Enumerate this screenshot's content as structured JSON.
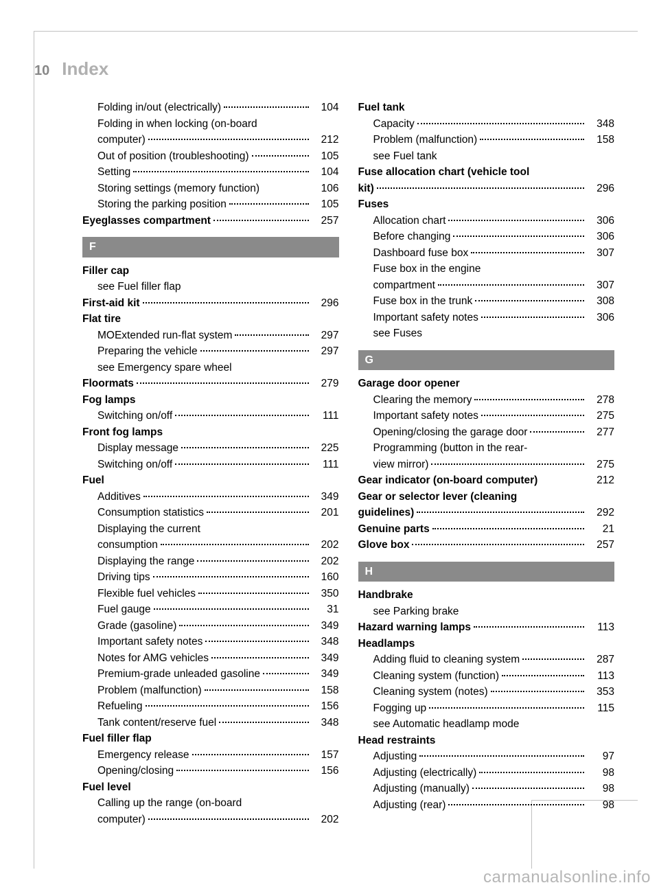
{
  "page_number": "10",
  "title": "Index",
  "watermark": "carmanualsonline.info",
  "colors": {
    "bar_bg": "#8a8a8a",
    "bar_fg": "#ffffff",
    "muted": "#b0b0b0",
    "text": "#000000",
    "frame": "#c0c0c0"
  },
  "left": [
    {
      "type": "row",
      "indent": 1,
      "bold": false,
      "label": "Folding in/out (electrically)",
      "page": "104",
      "dots": true
    },
    {
      "type": "row",
      "indent": 1,
      "bold": false,
      "label": "Folding in when locking (on-board",
      "cont": true
    },
    {
      "type": "row",
      "indent": 1,
      "bold": false,
      "label": "computer)",
      "page": "212",
      "dots": true
    },
    {
      "type": "row",
      "indent": 1,
      "bold": false,
      "label": "Out of position (troubleshooting)",
      "page": "105",
      "dots": true,
      "shortdots": true
    },
    {
      "type": "row",
      "indent": 1,
      "bold": false,
      "label": "Setting",
      "page": "104",
      "dots": true
    },
    {
      "type": "row",
      "indent": 1,
      "bold": false,
      "label": "Storing settings (memory function)",
      "page": "106",
      "dots": false
    },
    {
      "type": "row",
      "indent": 1,
      "bold": false,
      "label": "Storing the parking position",
      "page": "105",
      "dots": true
    },
    {
      "type": "row",
      "indent": 0,
      "bold": true,
      "label": "Eyeglasses compartment",
      "page": "257",
      "dots": true
    },
    {
      "type": "letter",
      "label": "F"
    },
    {
      "type": "row",
      "indent": 0,
      "bold": true,
      "label": "Filler cap"
    },
    {
      "type": "row",
      "indent": 1,
      "bold": false,
      "label": "see Fuel filler flap"
    },
    {
      "type": "row",
      "indent": 0,
      "bold": true,
      "label": "First-aid kit",
      "page": "296",
      "dots": true
    },
    {
      "type": "row",
      "indent": 0,
      "bold": true,
      "label": "Flat tire"
    },
    {
      "type": "row",
      "indent": 1,
      "bold": false,
      "label": "MOExtended run-flat system",
      "page": "297",
      "dots": true
    },
    {
      "type": "row",
      "indent": 1,
      "bold": false,
      "label": "Preparing the vehicle",
      "page": "297",
      "dots": true
    },
    {
      "type": "row",
      "indent": 1,
      "bold": false,
      "label": "see Emergency spare wheel"
    },
    {
      "type": "row",
      "indent": 0,
      "bold": true,
      "label": "Floormats",
      "page": "279",
      "dots": true
    },
    {
      "type": "row",
      "indent": 0,
      "bold": true,
      "label": "Fog lamps"
    },
    {
      "type": "row",
      "indent": 1,
      "bold": false,
      "label": "Switching on/off",
      "page": "111",
      "dots": true
    },
    {
      "type": "row",
      "indent": 0,
      "bold": true,
      "label": "Front fog lamps"
    },
    {
      "type": "row",
      "indent": 1,
      "bold": false,
      "label": "Display message",
      "page": "225",
      "dots": true
    },
    {
      "type": "row",
      "indent": 1,
      "bold": false,
      "label": "Switching on/off",
      "page": "111",
      "dots": true
    },
    {
      "type": "row",
      "indent": 0,
      "bold": true,
      "label": "Fuel"
    },
    {
      "type": "row",
      "indent": 1,
      "bold": false,
      "label": "Additives",
      "page": "349",
      "dots": true
    },
    {
      "type": "row",
      "indent": 1,
      "bold": false,
      "label": "Consumption statistics",
      "page": "201",
      "dots": true
    },
    {
      "type": "row",
      "indent": 1,
      "bold": false,
      "label": "Displaying the current",
      "cont": true
    },
    {
      "type": "row",
      "indent": 1,
      "bold": false,
      "label": "consumption",
      "page": "202",
      "dots": true
    },
    {
      "type": "row",
      "indent": 1,
      "bold": false,
      "label": "Displaying the range",
      "page": "202",
      "dots": true
    },
    {
      "type": "row",
      "indent": 1,
      "bold": false,
      "label": "Driving tips",
      "page": "160",
      "dots": true
    },
    {
      "type": "row",
      "indent": 1,
      "bold": false,
      "label": "Flexible fuel vehicles",
      "page": "350",
      "dots": true
    },
    {
      "type": "row",
      "indent": 1,
      "bold": false,
      "label": "Fuel gauge",
      "page": "31",
      "dots": true
    },
    {
      "type": "row",
      "indent": 1,
      "bold": false,
      "label": "Grade (gasoline)",
      "page": "349",
      "dots": true
    },
    {
      "type": "row",
      "indent": 1,
      "bold": false,
      "label": "Important safety notes",
      "page": "348",
      "dots": true
    },
    {
      "type": "row",
      "indent": 1,
      "bold": false,
      "label": "Notes for AMG vehicles",
      "page": "349",
      "dots": true
    },
    {
      "type": "row",
      "indent": 1,
      "bold": false,
      "label": "Premium-grade unleaded gasoline",
      "page": "349",
      "dots": true,
      "shortdots": true
    },
    {
      "type": "row",
      "indent": 1,
      "bold": false,
      "label": "Problem (malfunction)",
      "page": "158",
      "dots": true
    },
    {
      "type": "row",
      "indent": 1,
      "bold": false,
      "label": "Refueling",
      "page": "156",
      "dots": true
    },
    {
      "type": "row",
      "indent": 1,
      "bold": false,
      "label": "Tank content/reserve fuel",
      "page": "348",
      "dots": true
    },
    {
      "type": "row",
      "indent": 0,
      "bold": true,
      "label": "Fuel filler flap"
    },
    {
      "type": "row",
      "indent": 1,
      "bold": false,
      "label": "Emergency release",
      "page": "157",
      "dots": true
    },
    {
      "type": "row",
      "indent": 1,
      "bold": false,
      "label": "Opening/closing",
      "page": "156",
      "dots": true
    },
    {
      "type": "row",
      "indent": 0,
      "bold": true,
      "label": "Fuel level"
    },
    {
      "type": "row",
      "indent": 1,
      "bold": false,
      "label": "Calling up the range (on-board",
      "cont": true
    },
    {
      "type": "row",
      "indent": 1,
      "bold": false,
      "label": "computer)",
      "page": "202",
      "dots": true
    }
  ],
  "right": [
    {
      "type": "row",
      "indent": 0,
      "bold": true,
      "label": "Fuel tank"
    },
    {
      "type": "row",
      "indent": 1,
      "bold": false,
      "label": "Capacity",
      "page": "348",
      "dots": true
    },
    {
      "type": "row",
      "indent": 1,
      "bold": false,
      "label": "Problem (malfunction)",
      "page": "158",
      "dots": true
    },
    {
      "type": "row",
      "indent": 1,
      "bold": false,
      "label": "see Fuel tank"
    },
    {
      "type": "row",
      "indent": 0,
      "bold": true,
      "label": "Fuse allocation chart (vehicle tool",
      "cont": true
    },
    {
      "type": "row",
      "indent": 0,
      "bold": true,
      "label": "kit)",
      "page": "296",
      "dots": true
    },
    {
      "type": "row",
      "indent": 0,
      "bold": true,
      "label": "Fuses"
    },
    {
      "type": "row",
      "indent": 1,
      "bold": false,
      "label": "Allocation chart",
      "page": "306",
      "dots": true
    },
    {
      "type": "row",
      "indent": 1,
      "bold": false,
      "label": "Before changing",
      "page": "306",
      "dots": true
    },
    {
      "type": "row",
      "indent": 1,
      "bold": false,
      "label": "Dashboard fuse box",
      "page": "307",
      "dots": true
    },
    {
      "type": "row",
      "indent": 1,
      "bold": false,
      "label": "Fuse box in the engine",
      "cont": true
    },
    {
      "type": "row",
      "indent": 1,
      "bold": false,
      "label": "compartment",
      "page": "307",
      "dots": true
    },
    {
      "type": "row",
      "indent": 1,
      "bold": false,
      "label": "Fuse box in the trunk",
      "page": "308",
      "dots": true
    },
    {
      "type": "row",
      "indent": 1,
      "bold": false,
      "label": "Important safety notes",
      "page": "306",
      "dots": true
    },
    {
      "type": "row",
      "indent": 1,
      "bold": false,
      "label": "see Fuses"
    },
    {
      "type": "letter",
      "label": "G"
    },
    {
      "type": "row",
      "indent": 0,
      "bold": true,
      "label": "Garage door opener"
    },
    {
      "type": "row",
      "indent": 1,
      "bold": false,
      "label": "Clearing the memory",
      "page": "278",
      "dots": true
    },
    {
      "type": "row",
      "indent": 1,
      "bold": false,
      "label": "Important safety notes",
      "page": "275",
      "dots": true
    },
    {
      "type": "row",
      "indent": 1,
      "bold": false,
      "label": "Opening/closing the garage door",
      "page": "277",
      "dots": true,
      "shortdots": true
    },
    {
      "type": "row",
      "indent": 1,
      "bold": false,
      "label": "Programming (button in the rear-",
      "cont": true
    },
    {
      "type": "row",
      "indent": 1,
      "bold": false,
      "label": "view mirror)",
      "page": "275",
      "dots": true
    },
    {
      "type": "row",
      "indent": 0,
      "bold": true,
      "label": "Gear indicator (on-board computer)",
      "page": "212",
      "dots": false
    },
    {
      "type": "row",
      "indent": 0,
      "bold": true,
      "label": "Gear or selector lever (cleaning",
      "cont": true
    },
    {
      "type": "row",
      "indent": 0,
      "bold": true,
      "label": "guidelines)",
      "page": "292",
      "dots": true
    },
    {
      "type": "row",
      "indent": 0,
      "bold": true,
      "label": "Genuine parts",
      "page": "21",
      "dots": true
    },
    {
      "type": "row",
      "indent": 0,
      "bold": true,
      "label": "Glove box",
      "page": "257",
      "dots": true
    },
    {
      "type": "letter",
      "label": "H"
    },
    {
      "type": "row",
      "indent": 0,
      "bold": true,
      "label": "Handbrake"
    },
    {
      "type": "row",
      "indent": 1,
      "bold": false,
      "label": "see Parking brake"
    },
    {
      "type": "row",
      "indent": 0,
      "bold": true,
      "label": "Hazard warning lamps",
      "page": "113",
      "dots": true
    },
    {
      "type": "row",
      "indent": 0,
      "bold": true,
      "label": "Headlamps"
    },
    {
      "type": "row",
      "indent": 1,
      "bold": false,
      "label": "Adding fluid to cleaning system",
      "page": "287",
      "dots": true
    },
    {
      "type": "row",
      "indent": 1,
      "bold": false,
      "label": "Cleaning system (function)",
      "page": "113",
      "dots": true
    },
    {
      "type": "row",
      "indent": 1,
      "bold": false,
      "label": "Cleaning system (notes)",
      "page": "353",
      "dots": true
    },
    {
      "type": "row",
      "indent": 1,
      "bold": false,
      "label": "Fogging up",
      "page": "115",
      "dots": true
    },
    {
      "type": "row",
      "indent": 1,
      "bold": false,
      "label": "see Automatic headlamp mode"
    },
    {
      "type": "row",
      "indent": 0,
      "bold": true,
      "label": "Head restraints"
    },
    {
      "type": "row",
      "indent": 1,
      "bold": false,
      "label": "Adjusting",
      "page": "97",
      "dots": true
    },
    {
      "type": "row",
      "indent": 1,
      "bold": false,
      "label": "Adjusting (electrically)",
      "page": "98",
      "dots": true
    },
    {
      "type": "row",
      "indent": 1,
      "bold": false,
      "label": "Adjusting (manually)",
      "page": "98",
      "dots": true
    },
    {
      "type": "row",
      "indent": 1,
      "bold": false,
      "label": "Adjusting (rear)",
      "page": "98",
      "dots": true
    }
  ]
}
